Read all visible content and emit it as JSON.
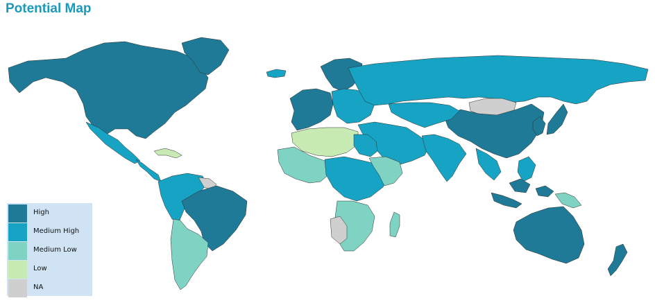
{
  "title": "Potential Map",
  "legend": {
    "items": [
      {
        "label": "High",
        "color": "#1e7a96"
      },
      {
        "label": "Medium High",
        "color": "#17a3c3"
      },
      {
        "label": "Medium Low",
        "color": "#7fd3c3"
      },
      {
        "label": "Low",
        "color": "#c8ebb4"
      },
      {
        "label": "NA",
        "color": "#cfcfcf"
      }
    ]
  },
  "map": {
    "background": "#ffffff",
    "border_color": "#2d2d2d",
    "regions": [
      {
        "name": "North America",
        "level": "High"
      },
      {
        "name": "Mexico",
        "level": "Medium High"
      },
      {
        "name": "Central America",
        "level": "Medium High"
      },
      {
        "name": "Caribbean",
        "level": "Low"
      },
      {
        "name": "Greenland",
        "level": "High"
      },
      {
        "name": "Iceland",
        "level": "Medium High"
      },
      {
        "name": "South America North",
        "level": "Medium High"
      },
      {
        "name": "Guianas",
        "level": "NA"
      },
      {
        "name": "Brazil",
        "level": "High"
      },
      {
        "name": "Chile / Argentina",
        "level": "Medium Low"
      },
      {
        "name": "Western Europe",
        "level": "High"
      },
      {
        "name": "Scandinavia",
        "level": "High"
      },
      {
        "name": "Eastern Europe",
        "level": "Medium High"
      },
      {
        "name": "Russia",
        "level": "Medium High"
      },
      {
        "name": "Mongolia",
        "level": "NA"
      },
      {
        "name": "China",
        "level": "High"
      },
      {
        "name": "Japan / Korea",
        "level": "High"
      },
      {
        "name": "Central Asia",
        "level": "Medium High"
      },
      {
        "name": "Middle East",
        "level": "Medium High"
      },
      {
        "name": "India",
        "level": "Medium High"
      },
      {
        "name": "Southeast Asia",
        "level": "Medium High"
      },
      {
        "name": "Indonesia",
        "level": "High"
      },
      {
        "name": "Papua New Guinea",
        "level": "Medium Low"
      },
      {
        "name": "Australia",
        "level": "High"
      },
      {
        "name": "New Zealand",
        "level": "High"
      },
      {
        "name": "North Africa",
        "level": "Low"
      },
      {
        "name": "Egypt",
        "level": "Medium High"
      },
      {
        "name": "West Africa",
        "level": "Medium Low"
      },
      {
        "name": "Central Africa",
        "level": "Medium High"
      },
      {
        "name": "East Africa",
        "level": "Medium Low"
      },
      {
        "name": "Southern Africa",
        "level": "Medium Low"
      },
      {
        "name": "Angola / Namibia",
        "level": "NA"
      },
      {
        "name": "Madagascar",
        "level": "Medium Low"
      }
    ]
  }
}
